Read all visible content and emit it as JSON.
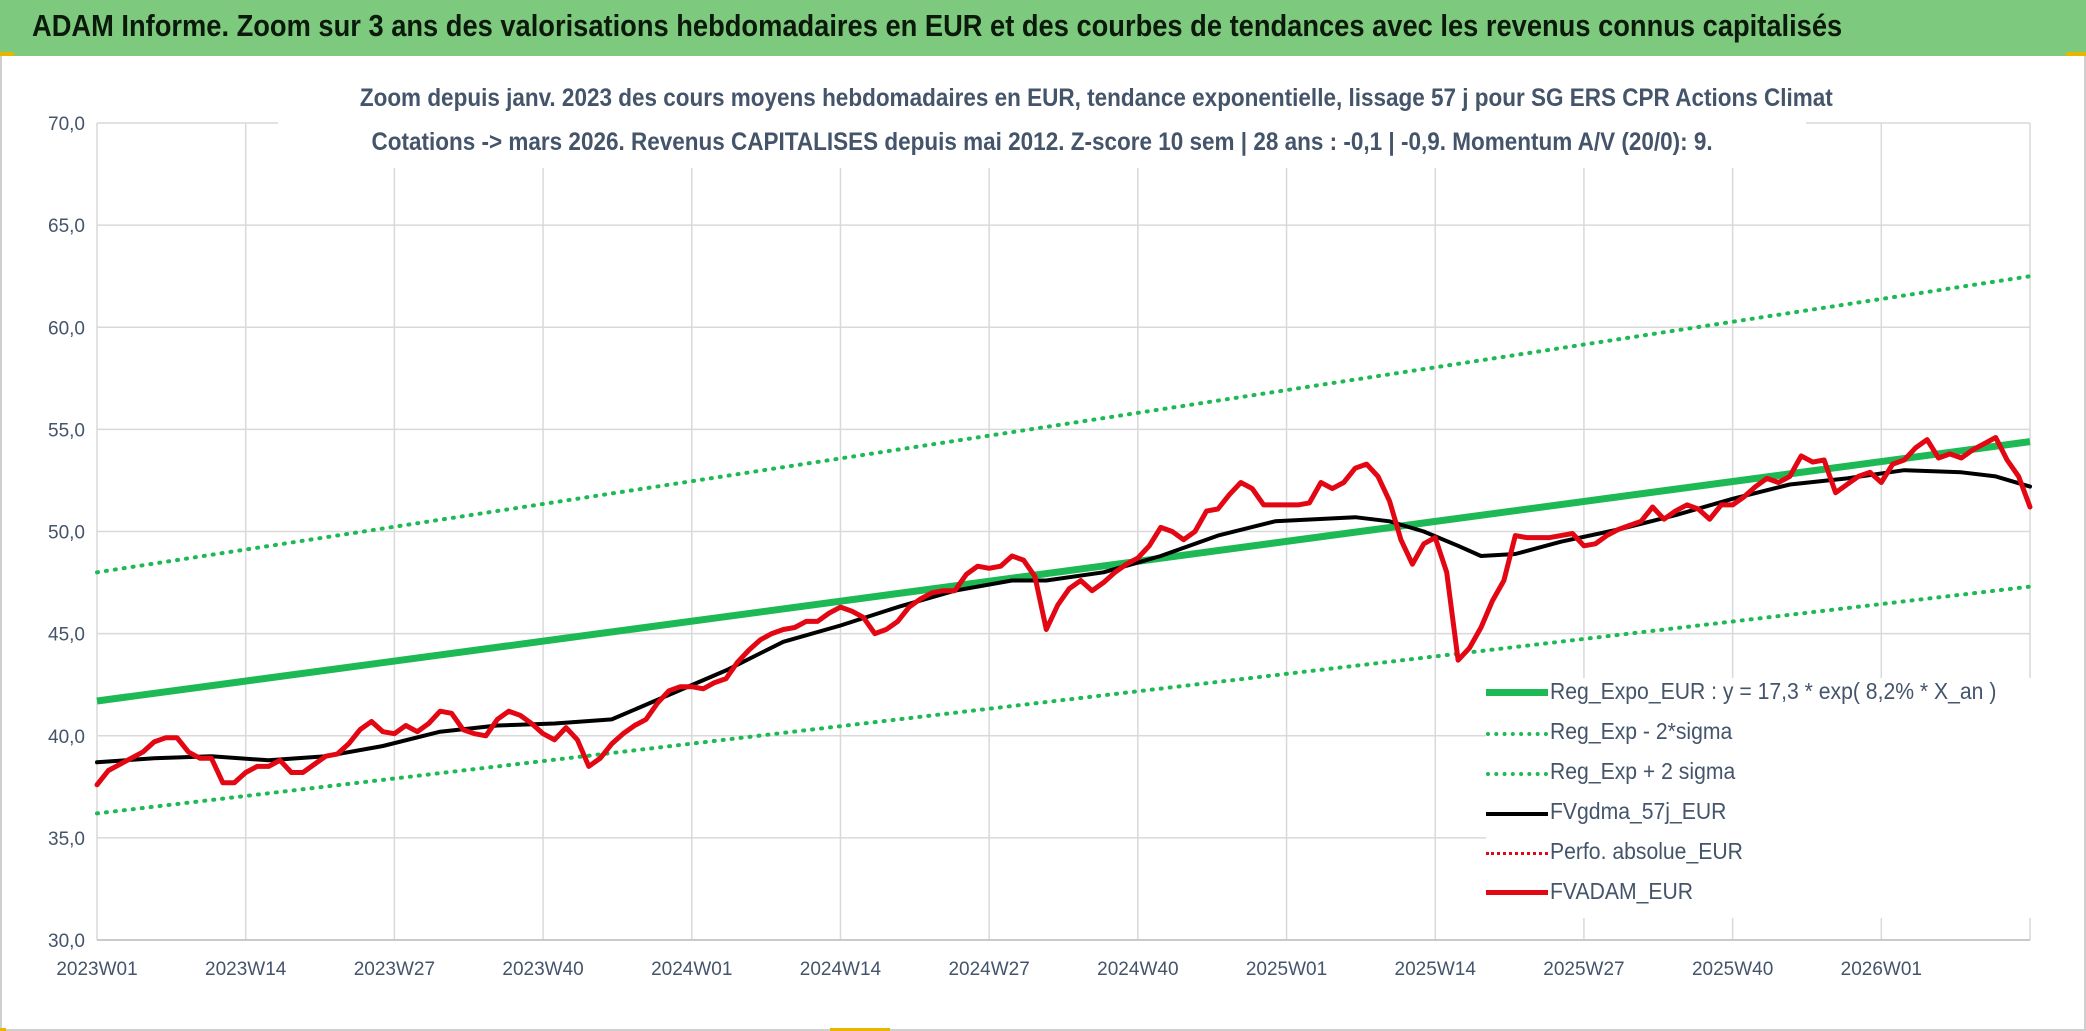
{
  "banner": {
    "title": "ADAM Informe. Zoom sur 3 ans des valorisations hebdomadaires en EUR et des courbes de tendances avec les revenus connus capitalisés"
  },
  "colors": {
    "banner": "#7dc97d",
    "trend": "#1db954",
    "sigma": "#1db954",
    "gdma": "#000000",
    "perfo": "#e30613",
    "price": "#e30613",
    "grid": "#d9d9d9",
    "text": "#44546a"
  },
  "chart_data": {
    "type": "line",
    "title": "Zoom depuis janv. 2023 des cours moyens hebdomadaires en EUR, tendance exponentielle, lissage 57 j pour SG ERS CPR Actions Climat",
    "subtitle": "Cotations -> mars 2026. Revenus CAPITALISES depuis mai 2012. Z-score 10 sem | 28 ans : -0,1 | -0,9. Momentum A/V (20/0): 9.",
    "xlabel": "",
    "ylabel": "",
    "ylim": [
      30,
      70
    ],
    "yticks": [
      "30,0",
      "35,0",
      "40,0",
      "45,0",
      "50,0",
      "55,0",
      "60,0",
      "65,0",
      "70,0"
    ],
    "x_tick_labels": [
      "2023W01",
      "2023W14",
      "2023W27",
      "2023W40",
      "2024W01",
      "2024W14",
      "2024W27",
      "2024W40",
      "2025W01",
      "2025W14",
      "2025W27",
      "2025W40",
      "2026W01"
    ],
    "x_tick_index": [
      0,
      13,
      26,
      39,
      52,
      65,
      78,
      91,
      104,
      117,
      130,
      143,
      156
    ],
    "x_count": 170,
    "grid": true,
    "legend_position": "bottom-right",
    "series": [
      {
        "name": "Reg_Expo_EUR : y = 17,3 * exp( 8,2% *  X_an )",
        "style": "solid-thick",
        "points": [
          [
            0,
            41.7
          ],
          [
            169,
            54.4
          ]
        ]
      },
      {
        "name": "Reg_Exp - 2*sigma",
        "style": "dotted",
        "points": [
          [
            0,
            36.2
          ],
          [
            169,
            47.3
          ]
        ]
      },
      {
        "name": "Reg_Exp + 2 sigma",
        "style": "dotted",
        "points": [
          [
            0,
            48.0
          ],
          [
            169,
            62.5
          ]
        ]
      },
      {
        "name": "FVgdma_57j_EUR",
        "style": "solid",
        "points": [
          [
            0,
            38.7
          ],
          [
            5,
            38.9
          ],
          [
            10,
            39.0
          ],
          [
            15,
            38.8
          ],
          [
            20,
            39.0
          ],
          [
            25,
            39.5
          ],
          [
            30,
            40.2
          ],
          [
            35,
            40.5
          ],
          [
            40,
            40.6
          ],
          [
            45,
            40.8
          ],
          [
            50,
            42.0
          ],
          [
            55,
            43.2
          ],
          [
            60,
            44.6
          ],
          [
            65,
            45.4
          ],
          [
            70,
            46.3
          ],
          [
            75,
            47.1
          ],
          [
            80,
            47.6
          ],
          [
            83,
            47.6
          ],
          [
            88,
            48.0
          ],
          [
            93,
            48.8
          ],
          [
            98,
            49.8
          ],
          [
            103,
            50.5
          ],
          [
            110,
            50.7
          ],
          [
            113,
            50.5
          ],
          [
            116,
            50.0
          ],
          [
            119,
            49.3
          ],
          [
            121,
            48.8
          ],
          [
            124,
            48.9
          ],
          [
            128,
            49.5
          ],
          [
            133,
            50.1
          ],
          [
            138,
            50.8
          ],
          [
            143,
            51.6
          ],
          [
            148,
            52.3
          ],
          [
            153,
            52.6
          ],
          [
            158,
            53.0
          ],
          [
            163,
            52.9
          ],
          [
            166,
            52.7
          ],
          [
            169,
            52.2
          ]
        ]
      },
      {
        "name": "Perfo. absolue_EUR",
        "style": "dotted-red",
        "points": []
      },
      {
        "name": "FVADAM_EUR",
        "style": "solid-thick-red",
        "points": [
          [
            0,
            37.6
          ],
          [
            1,
            38.3
          ],
          [
            2,
            38.6
          ],
          [
            3,
            38.9
          ],
          [
            4,
            39.2
          ],
          [
            5,
            39.7
          ],
          [
            6,
            39.9
          ],
          [
            7,
            39.9
          ],
          [
            8,
            39.2
          ],
          [
            9,
            38.9
          ],
          [
            10,
            38.9
          ],
          [
            11,
            37.7
          ],
          [
            12,
            37.7
          ],
          [
            13,
            38.2
          ],
          [
            14,
            38.5
          ],
          [
            15,
            38.5
          ],
          [
            16,
            38.8
          ],
          [
            17,
            38.2
          ],
          [
            18,
            38.2
          ],
          [
            19,
            38.6
          ],
          [
            20,
            39.0
          ],
          [
            21,
            39.1
          ],
          [
            22,
            39.6
          ],
          [
            23,
            40.3
          ],
          [
            24,
            40.7
          ],
          [
            25,
            40.2
          ],
          [
            26,
            40.1
          ],
          [
            27,
            40.5
          ],
          [
            28,
            40.2
          ],
          [
            29,
            40.6
          ],
          [
            30,
            41.2
          ],
          [
            31,
            41.1
          ],
          [
            32,
            40.3
          ],
          [
            33,
            40.1
          ],
          [
            34,
            40.0
          ],
          [
            35,
            40.8
          ],
          [
            36,
            41.2
          ],
          [
            37,
            41.0
          ],
          [
            38,
            40.6
          ],
          [
            39,
            40.1
          ],
          [
            40,
            39.8
          ],
          [
            41,
            40.4
          ],
          [
            42,
            39.8
          ],
          [
            43,
            38.5
          ],
          [
            44,
            38.9
          ],
          [
            45,
            39.6
          ],
          [
            46,
            40.1
          ],
          [
            47,
            40.5
          ],
          [
            48,
            40.8
          ],
          [
            49,
            41.6
          ],
          [
            50,
            42.2
          ],
          [
            51,
            42.4
          ],
          [
            52,
            42.4
          ],
          [
            53,
            42.3
          ],
          [
            54,
            42.6
          ],
          [
            55,
            42.8
          ],
          [
            56,
            43.6
          ],
          [
            57,
            44.2
          ],
          [
            58,
            44.7
          ],
          [
            59,
            45.0
          ],
          [
            60,
            45.2
          ],
          [
            61,
            45.3
          ],
          [
            62,
            45.6
          ],
          [
            63,
            45.6
          ],
          [
            64,
            46.0
          ],
          [
            65,
            46.3
          ],
          [
            66,
            46.1
          ],
          [
            67,
            45.8
          ],
          [
            68,
            45.0
          ],
          [
            69,
            45.2
          ],
          [
            70,
            45.6
          ],
          [
            71,
            46.3
          ],
          [
            72,
            46.7
          ],
          [
            73,
            47.0
          ],
          [
            74,
            47.1
          ],
          [
            75,
            47.1
          ],
          [
            76,
            47.9
          ],
          [
            77,
            48.3
          ],
          [
            78,
            48.2
          ],
          [
            79,
            48.3
          ],
          [
            80,
            48.8
          ],
          [
            81,
            48.6
          ],
          [
            82,
            47.8
          ],
          [
            83,
            45.2
          ],
          [
            84,
            46.4
          ],
          [
            85,
            47.2
          ],
          [
            86,
            47.6
          ],
          [
            87,
            47.1
          ],
          [
            88,
            47.5
          ],
          [
            89,
            48.0
          ],
          [
            90,
            48.4
          ],
          [
            91,
            48.7
          ],
          [
            92,
            49.3
          ],
          [
            93,
            50.2
          ],
          [
            94,
            50.0
          ],
          [
            95,
            49.6
          ],
          [
            96,
            50.0
          ],
          [
            97,
            51.0
          ],
          [
            98,
            51.1
          ],
          [
            99,
            51.8
          ],
          [
            100,
            52.4
          ],
          [
            101,
            52.1
          ],
          [
            102,
            51.3
          ],
          [
            103,
            51.3
          ],
          [
            104,
            51.3
          ],
          [
            105,
            51.3
          ],
          [
            106,
            51.4
          ],
          [
            107,
            52.4
          ],
          [
            108,
            52.1
          ],
          [
            109,
            52.4
          ],
          [
            110,
            53.1
          ],
          [
            111,
            53.3
          ],
          [
            112,
            52.7
          ],
          [
            113,
            51.5
          ],
          [
            114,
            49.6
          ],
          [
            115,
            48.4
          ],
          [
            116,
            49.4
          ],
          [
            117,
            49.7
          ],
          [
            118,
            48.0
          ],
          [
            119,
            43.7
          ],
          [
            120,
            44.3
          ],
          [
            121,
            45.3
          ],
          [
            122,
            46.6
          ],
          [
            123,
            47.6
          ],
          [
            124,
            49.8
          ],
          [
            125,
            49.7
          ],
          [
            126,
            49.7
          ],
          [
            127,
            49.7
          ],
          [
            128,
            49.8
          ],
          [
            129,
            49.9
          ],
          [
            130,
            49.3
          ],
          [
            131,
            49.4
          ],
          [
            132,
            49.8
          ],
          [
            133,
            50.1
          ],
          [
            134,
            50.3
          ],
          [
            135,
            50.5
          ],
          [
            136,
            51.2
          ],
          [
            137,
            50.6
          ],
          [
            138,
            51.0
          ],
          [
            139,
            51.3
          ],
          [
            140,
            51.1
          ],
          [
            141,
            50.6
          ],
          [
            142,
            51.3
          ],
          [
            143,
            51.3
          ],
          [
            144,
            51.7
          ],
          [
            145,
            52.2
          ],
          [
            146,
            52.6
          ],
          [
            147,
            52.4
          ],
          [
            148,
            52.7
          ],
          [
            149,
            53.7
          ],
          [
            150,
            53.4
          ],
          [
            151,
            53.5
          ],
          [
            152,
            51.9
          ],
          [
            153,
            52.3
          ],
          [
            154,
            52.7
          ],
          [
            155,
            52.9
          ],
          [
            156,
            52.4
          ],
          [
            157,
            53.3
          ],
          [
            158,
            53.5
          ],
          [
            159,
            54.1
          ],
          [
            160,
            54.5
          ],
          [
            161,
            53.6
          ],
          [
            162,
            53.8
          ],
          [
            163,
            53.6
          ],
          [
            164,
            54.0
          ],
          [
            165,
            54.3
          ],
          [
            166,
            54.6
          ],
          [
            167,
            53.5
          ],
          [
            168,
            52.7
          ],
          [
            169,
            51.2
          ]
        ]
      }
    ]
  }
}
